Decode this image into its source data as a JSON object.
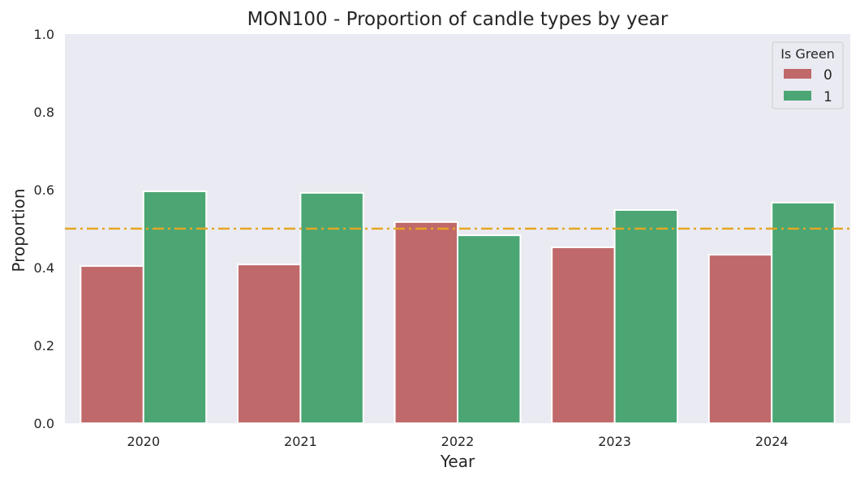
{
  "chart_data": {
    "type": "bar",
    "title": "MON100 - Proportion of candle types by year",
    "xlabel": "Year",
    "ylabel": "Proportion",
    "categories": [
      "2020",
      "2021",
      "2022",
      "2023",
      "2024"
    ],
    "series": [
      {
        "name": "0",
        "color": "#c0696a",
        "values": [
          0.404,
          0.408,
          0.517,
          0.452,
          0.433
        ]
      },
      {
        "name": "1",
        "color": "#4ba674",
        "values": [
          0.596,
          0.592,
          0.483,
          0.548,
          0.567
        ]
      }
    ],
    "ylim": [
      0,
      1.0
    ],
    "yticks": [
      0.0,
      0.2,
      0.4,
      0.6,
      0.8,
      1.0
    ],
    "ytick_labels": [
      "0.0",
      "0.2",
      "0.4",
      "0.6",
      "0.8",
      "1.0"
    ],
    "reference_line": {
      "y": 0.5,
      "style": "dash-dot",
      "color": "#e5a522"
    },
    "legend": {
      "title": "Is Green",
      "position": "top-right"
    },
    "grid": false,
    "background_color": "#eaeaf2"
  }
}
